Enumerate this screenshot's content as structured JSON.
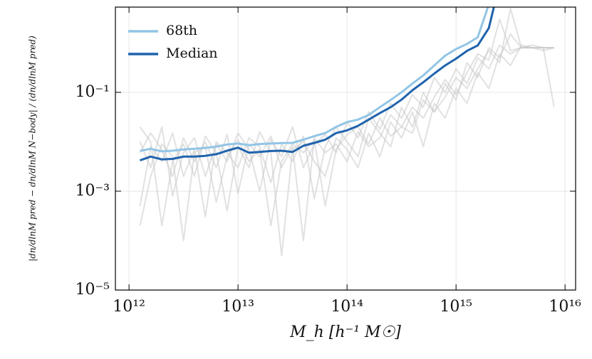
{
  "chart_data": {
    "type": "line",
    "xlabel": "M_h [h⁻¹ M☉]",
    "ylabel": "|dn/dlnM pred − dn/dlnM N−body| / (dn/dlnM pred)",
    "xscale": "log",
    "yscale": "log",
    "grid": true,
    "legend": "upper-left",
    "xlim": [
      750000000000.0,
      1.25e+16
    ],
    "ylim": [
      1e-05,
      5.3
    ],
    "xticks": [
      {
        "value": 1000000000000.0,
        "label": "10¹²"
      },
      {
        "value": 10000000000000.0,
        "label": "10¹³"
      },
      {
        "value": 100000000000000.0,
        "label": "10¹⁴"
      },
      {
        "value": 1000000000000000.0,
        "label": "10¹⁵"
      },
      {
        "value": 1e+16,
        "label": "10¹⁶"
      }
    ],
    "yticks": [
      {
        "value": 1e-05,
        "label": "10⁻⁵"
      },
      {
        "value": 0.001,
        "label": "10⁻³"
      },
      {
        "value": 0.1,
        "label": "10⁻¹"
      }
    ],
    "x": [
      1260000000000.0,
      1580000000000.0,
      2000000000000.0,
      2510000000000.0,
      3160000000000.0,
      3980000000000.0,
      5010000000000.0,
      6310000000000.0,
      7940000000000.0,
      10000000000000.0,
      12600000000000.0,
      15800000000000.0,
      20000000000000.0,
      25100000000000.0,
      31600000000000.0,
      39800000000000.0,
      50100000000000.0,
      63100000000000.0,
      79400000000000.0,
      100000000000000.0,
      126000000000000.0,
      158000000000000.0,
      200000000000000.0,
      251000000000000.0,
      316000000000000.0,
      398000000000000.0,
      501000000000000.0,
      631000000000000.0,
      794000000000000.0,
      1000000000000000.0,
      1260000000000000.0,
      1580000000000000.0,
      2000000000000000.0,
      2510000000000000.0,
      3160000000000000.0,
      3980000000000000.0,
      5010000000000000.0,
      6310000000000000.0,
      7940000000000000.0
    ],
    "series": [
      {
        "color": "#c8c8c8",
        "values": [
          0.01,
          0.003,
          0.02,
          0.0008,
          0.006,
          0.012,
          0.002,
          0.009,
          0.004,
          0.015,
          0.007,
          0.001,
          0.011,
          0.005,
          0.02,
          0.003,
          0.009,
          0.014,
          0.006,
          0.025,
          0.012,
          0.04,
          0.018,
          0.06,
          0.03,
          0.09,
          0.05,
          0.2,
          0.1,
          0.3,
          0.15,
          0.5,
          0.3,
          0.9,
          0.6,
          0.8,
          0.8,
          0.8,
          0.8
        ]
      },
      {
        "color": "#c8c8c8",
        "values": [
          0.0005,
          0.008,
          0.004,
          0.015,
          0.002,
          0.007,
          0.0003,
          0.01,
          0.006,
          0.003,
          0.012,
          0.008,
          0.0015,
          0.009,
          0.004,
          0.013,
          0.0007,
          0.008,
          0.02,
          0.01,
          0.005,
          0.03,
          0.015,
          0.008,
          0.05,
          0.02,
          0.1,
          0.04,
          0.15,
          0.07,
          0.4,
          0.2,
          0.8,
          0.5,
          1.5,
          0.8,
          0.8,
          0.7,
          0.8
        ]
      },
      {
        "color": "#c8c8c8",
        "values": [
          0.02,
          0.01,
          0.0002,
          0.004,
          0.009,
          0.002,
          0.013,
          0.006,
          0.0004,
          0.008,
          0.003,
          0.016,
          0.006,
          5e-05,
          0.007,
          0.01,
          0.004,
          0.002,
          0.012,
          0.007,
          0.003,
          0.015,
          0.005,
          0.025,
          0.012,
          0.04,
          0.008,
          0.06,
          0.03,
          0.12,
          0.06,
          0.25,
          0.12,
          0.6,
          0.35,
          0.9,
          0.8,
          0.8,
          0.8
        ]
      },
      {
        "color": "#c8c8c8",
        "values": [
          0.0002,
          0.002,
          0.009,
          0.005,
          0.0001,
          0.006,
          0.008,
          0.0006,
          0.005,
          0.011,
          0.004,
          0.007,
          0.0002,
          0.004,
          0.009,
          0.006,
          0.011,
          0.0005,
          0.007,
          0.014,
          0.02,
          0.009,
          0.03,
          0.013,
          0.02,
          0.05,
          0.03,
          0.08,
          0.18,
          0.09,
          0.25,
          0.6,
          0.45,
          3,
          0.7,
          0.8,
          0.9,
          0.8,
          0.05
        ]
      },
      {
        "color": "#c8c8c8",
        "values": [
          0.006,
          0.015,
          0.007,
          0.002,
          0.012,
          0.004,
          0.01,
          0.003,
          0.014,
          0.0009,
          0.009,
          0.005,
          0.013,
          0.003,
          0.008,
          0.0001,
          0.012,
          0.006,
          0.009,
          0.004,
          0.016,
          0.008,
          0.012,
          0.035,
          0.02,
          0.015,
          0.07,
          0.04,
          0.08,
          0.2,
          0.12,
          0.3,
          0.7,
          0.4,
          5,
          0.8,
          0.8,
          0.8,
          0.8
        ]
      },
      {
        "name": "68th",
        "color": "#92c5e6",
        "values": [
          0.0065,
          0.0072,
          0.0064,
          0.0066,
          0.007,
          0.0072,
          0.0075,
          0.008,
          0.0088,
          0.0092,
          0.0085,
          0.009,
          0.0092,
          0.0094,
          0.0095,
          0.011,
          0.013,
          0.015,
          0.02,
          0.025,
          0.028,
          0.035,
          0.05,
          0.07,
          0.1,
          0.15,
          0.22,
          0.35,
          0.55,
          0.75,
          0.95,
          1.3,
          6,
          null,
          null,
          null,
          null,
          null,
          null
        ]
      },
      {
        "name": "Median",
        "color": "#1f63ad",
        "values": [
          0.0042,
          0.005,
          0.0044,
          0.0045,
          0.005,
          0.005,
          0.0052,
          0.0056,
          0.0066,
          0.0076,
          0.006,
          0.0062,
          0.0065,
          0.0066,
          0.0062,
          0.0083,
          0.0095,
          0.011,
          0.015,
          0.017,
          0.021,
          0.028,
          0.038,
          0.05,
          0.071,
          0.11,
          0.16,
          0.24,
          0.35,
          0.48,
          0.69,
          0.89,
          2.0,
          16,
          null,
          null,
          null,
          null,
          null
        ]
      }
    ]
  }
}
